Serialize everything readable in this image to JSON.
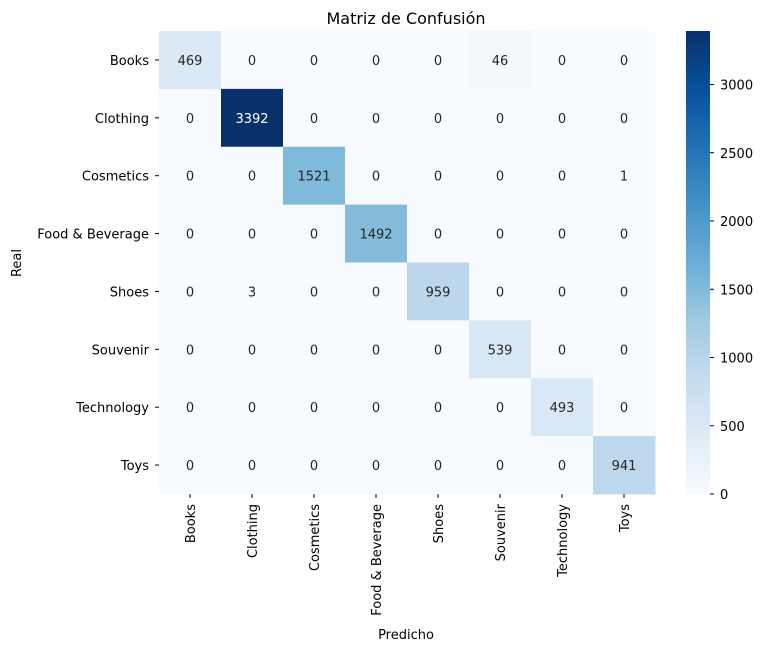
{
  "chart_data": {
    "type": "heatmap",
    "title": "Matriz de Confusión",
    "xlabel": "Predicho",
    "ylabel": "Real",
    "x_categories": [
      "Books",
      "Clothing",
      "Cosmetics",
      "Food & Beverage",
      "Shoes",
      "Souvenir",
      "Technology",
      "Toys"
    ],
    "y_categories": [
      "Books",
      "Clothing",
      "Cosmetics",
      "Food & Beverage",
      "Shoes",
      "Souvenir",
      "Technology",
      "Toys"
    ],
    "values": [
      [
        469,
        0,
        0,
        0,
        0,
        46,
        0,
        0
      ],
      [
        0,
        3392,
        0,
        0,
        0,
        0,
        0,
        0
      ],
      [
        0,
        0,
        1521,
        0,
        0,
        0,
        0,
        1
      ],
      [
        0,
        0,
        0,
        1492,
        0,
        0,
        0,
        0
      ],
      [
        0,
        3,
        0,
        0,
        959,
        0,
        0,
        0
      ],
      [
        0,
        0,
        0,
        0,
        0,
        539,
        0,
        0
      ],
      [
        0,
        0,
        0,
        0,
        0,
        0,
        493,
        0
      ],
      [
        0,
        0,
        0,
        0,
        0,
        0,
        0,
        941
      ]
    ],
    "colorbar": {
      "colormap": "Blues",
      "range": [
        0,
        3392
      ],
      "ticks": [
        0,
        500,
        1000,
        1500,
        2000,
        2500,
        3000
      ]
    },
    "text_color_light": "#ffffff",
    "text_color_dark": "#262626"
  }
}
